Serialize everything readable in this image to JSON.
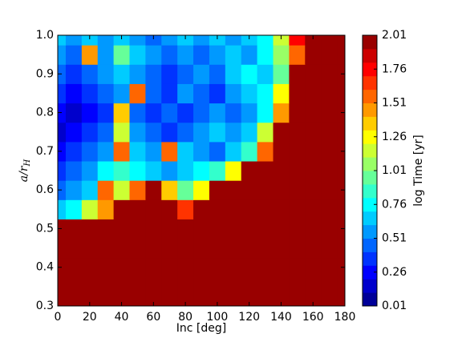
{
  "chart_data": {
    "type": "heatmap",
    "colormap": "jet",
    "xlabel": "Inc [deg]",
    "ylabel": {
      "text": "a/r",
      "subscript": "H"
    },
    "colorbar_label": "log Time [yr]",
    "x": [
      0,
      10,
      20,
      30,
      40,
      50,
      60,
      70,
      80,
      90,
      100,
      110,
      120,
      130,
      140,
      150,
      160,
      170,
      180
    ],
    "y": [
      0.3,
      0.35,
      0.4,
      0.45,
      0.5,
      0.55,
      0.6,
      0.65,
      0.7,
      0.75,
      0.8,
      0.85,
      0.9,
      0.95,
      1.0
    ],
    "z": [
      [
        2.01,
        2.01,
        2.01,
        2.01,
        2.01,
        2.01,
        2.01,
        2.01,
        2.01,
        2.01,
        2.01,
        2.01,
        2.01,
        2.01,
        2.01,
        2.01,
        2.01,
        2.01,
        2.01
      ],
      [
        2.01,
        2.01,
        2.01,
        2.01,
        2.01,
        2.01,
        2.01,
        2.01,
        2.01,
        2.01,
        2.01,
        2.01,
        2.01,
        2.01,
        2.01,
        2.01,
        2.01,
        2.01,
        2.01
      ],
      [
        2.01,
        2.01,
        2.01,
        2.01,
        2.01,
        2.01,
        2.01,
        2.01,
        2.01,
        2.01,
        2.01,
        2.01,
        2.01,
        2.01,
        2.01,
        2.01,
        2.01,
        2.01,
        2.01
      ],
      [
        2.01,
        2.01,
        2.01,
        2.01,
        2.01,
        2.01,
        2.01,
        2.01,
        2.01,
        2.01,
        2.01,
        2.01,
        2.01,
        2.01,
        2.01,
        2.01,
        2.01,
        2.01,
        2.01
      ],
      [
        2.01,
        2.01,
        2.01,
        2.01,
        2.01,
        2.01,
        2.01,
        2.01,
        2.01,
        2.01,
        2.01,
        2.01,
        2.01,
        2.01,
        2.01,
        2.01,
        2.01,
        2.01,
        2.01
      ],
      [
        0.7,
        0.8,
        1.2,
        1.5,
        2.01,
        2.01,
        2.01,
        2.01,
        1.7,
        2.01,
        2.01,
        2.01,
        2.01,
        2.01,
        2.01,
        2.01,
        2.01,
        2.01,
        2.01
      ],
      [
        0.5,
        0.6,
        0.7,
        1.6,
        1.2,
        1.6,
        2.01,
        1.4,
        1.0,
        1.3,
        2.01,
        2.01,
        2.01,
        2.01,
        2.01,
        2.01,
        2.01,
        2.01,
        2.01
      ],
      [
        0.4,
        0.5,
        0.6,
        0.8,
        0.9,
        0.8,
        0.7,
        0.6,
        0.7,
        0.8,
        0.9,
        1.3,
        2.01,
        2.01,
        2.01,
        2.01,
        2.01,
        2.01,
        2.01
      ],
      [
        0.3,
        0.4,
        0.5,
        0.6,
        1.6,
        0.7,
        0.6,
        1.6,
        0.7,
        0.6,
        0.5,
        0.7,
        0.9,
        1.6,
        2.01,
        2.01,
        2.01,
        2.01,
        2.01
      ],
      [
        0.2,
        0.3,
        0.4,
        0.5,
        1.2,
        0.6,
        0.5,
        0.4,
        0.5,
        0.6,
        0.7,
        0.6,
        0.7,
        1.2,
        2.01,
        2.01,
        2.01,
        2.01,
        2.01
      ],
      [
        0.3,
        0.2,
        0.3,
        0.4,
        1.4,
        0.5,
        0.4,
        0.5,
        0.4,
        0.5,
        0.6,
        0.5,
        0.6,
        0.8,
        1.5,
        2.01,
        2.01,
        2.01,
        2.01
      ],
      [
        0.4,
        0.3,
        0.4,
        0.5,
        0.6,
        1.6,
        0.5,
        0.4,
        0.6,
        0.5,
        0.4,
        0.6,
        0.7,
        0.8,
        1.3,
        2.01,
        2.01,
        2.01,
        2.01
      ],
      [
        0.5,
        0.4,
        0.5,
        0.6,
        0.7,
        0.6,
        0.5,
        0.4,
        0.5,
        0.6,
        0.5,
        0.7,
        0.8,
        0.7,
        1.0,
        2.01,
        2.01,
        2.01,
        2.01
      ],
      [
        0.6,
        0.5,
        1.5,
        0.6,
        1.0,
        0.7,
        0.6,
        0.5,
        0.6,
        0.5,
        0.6,
        0.7,
        0.6,
        0.8,
        1.1,
        1.6,
        2.01,
        2.01,
        2.01
      ],
      [
        0.7,
        0.6,
        0.7,
        0.6,
        0.7,
        0.6,
        0.5,
        0.6,
        0.7,
        0.6,
        0.7,
        0.6,
        0.7,
        0.8,
        1.2,
        1.8,
        2.01,
        2.01,
        2.01
      ]
    ],
    "xlim": [
      0,
      180
    ],
    "xticks": [
      0,
      20,
      40,
      60,
      80,
      100,
      120,
      140,
      160,
      180
    ],
    "ylim": [
      0.3,
      1.0
    ],
    "yticks": [
      0.3,
      0.4,
      0.5,
      0.6,
      0.7,
      0.8,
      0.9,
      {
        "value": 1.0,
        "label": "1.0"
      }
    ],
    "zlim": [
      0.01,
      2.01
    ],
    "zticks": [
      0.01,
      0.26,
      0.51,
      0.76,
      1.01,
      1.26,
      1.51,
      1.76,
      2.01
    ]
  }
}
